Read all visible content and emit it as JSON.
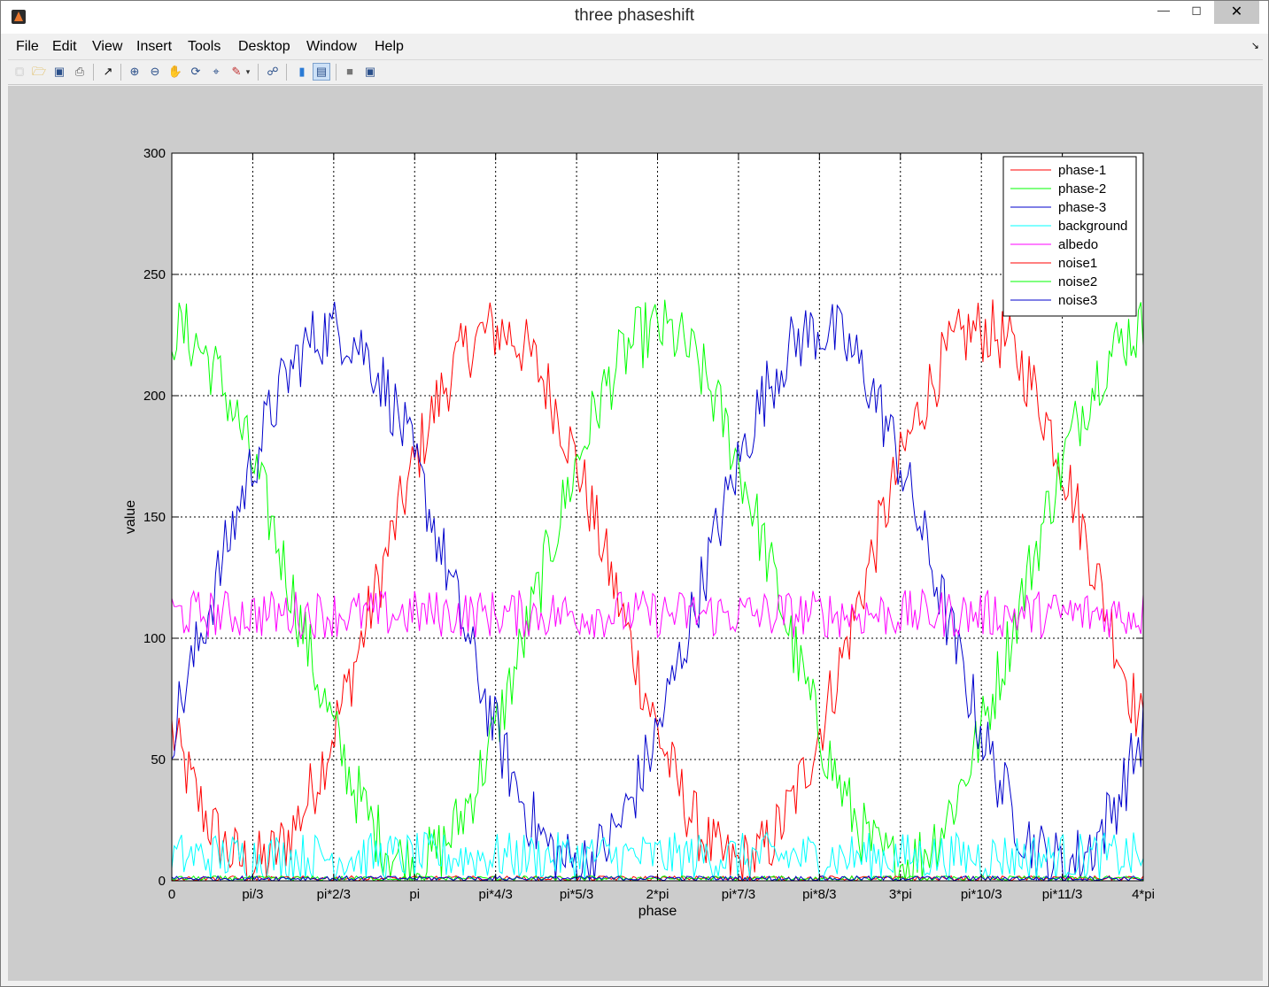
{
  "window": {
    "title": "three phaseshift"
  },
  "menu": [
    "File",
    "Edit",
    "View",
    "Insert",
    "Tools",
    "Desktop",
    "Window",
    "Help"
  ],
  "toolbar_icons": [
    "new-figure-icon",
    "open-file-icon",
    "save-icon",
    "print-icon",
    "edit-plot-icon",
    "zoom-in-icon",
    "zoom-out-icon",
    "pan-icon",
    "rotate-3d-icon",
    "data-cursor-icon",
    "brush-icon",
    "link-plot-icon",
    "colorbar-icon",
    "legend-icon",
    "hide-plot-tools-icon",
    "show-plot-tools-icon"
  ],
  "chart_data": {
    "type": "line",
    "title": "",
    "xlabel": "phase",
    "ylabel": "value",
    "xlim": [
      0,
      12.566
    ],
    "ylim": [
      0,
      300
    ],
    "grid": true,
    "legend_position": "top-right",
    "xticks": [
      0,
      1.0472,
      2.0944,
      3.1416,
      4.1888,
      5.236,
      6.2832,
      7.3304,
      8.3776,
      9.4248,
      10.472,
      11.519,
      12.566
    ],
    "xticklabels": [
      "0",
      "pi/3",
      "pi*2/3",
      "pi",
      "pi*4/3",
      "pi*5/3",
      "2*pi",
      "pi*7/3",
      "pi*8/3",
      "3*pi",
      "pi*10/3",
      "pi*11/3",
      "4*pi"
    ],
    "yticks": [
      0,
      50,
      100,
      150,
      200,
      250,
      300
    ],
    "x_samples": 400,
    "series": [
      {
        "name": "phase-1",
        "color": "#ff0000",
        "formula": "117 + 110*cos(x + 2.094) + noise",
        "mean": 117,
        "amplitude": 110,
        "phase_offset": 2.094,
        "noise_amplitude": 14
      },
      {
        "name": "phase-2",
        "color": "#00ff00",
        "formula": "117 + 110*cos(x) + noise",
        "mean": 117,
        "amplitude": 110,
        "phase_offset": 0,
        "noise_amplitude": 14
      },
      {
        "name": "phase-3",
        "color": "#0000cc",
        "formula": "117 + 110*cos(x - 2.094) + noise",
        "mean": 117,
        "amplitude": 110,
        "phase_offset": -2.094,
        "noise_amplitude": 14
      },
      {
        "name": "background",
        "color": "#00ffff",
        "formula": "uniform noise 0..20",
        "min": 0,
        "max": 20
      },
      {
        "name": "albedo",
        "color": "#ff00ff",
        "formula": "uniform noise 100..120",
        "min": 100,
        "max": 120
      },
      {
        "name": "noise1",
        "color": "#ff0000",
        "formula": "uniform noise 0..2",
        "min": 0,
        "max": 2
      },
      {
        "name": "noise2",
        "color": "#00ff00",
        "formula": "uniform noise 0..2",
        "min": 0,
        "max": 2
      },
      {
        "name": "noise3",
        "color": "#0000cc",
        "formula": "uniform noise 0..2",
        "min": 0,
        "max": 2
      }
    ]
  }
}
